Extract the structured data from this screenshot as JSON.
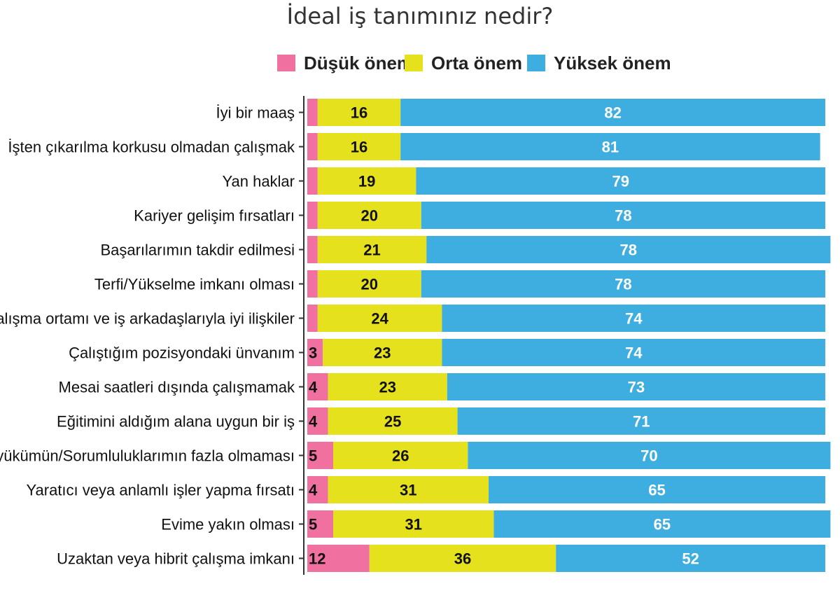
{
  "chart_data": {
    "type": "bar",
    "orientation": "horizontal",
    "stacked": true,
    "title": "İdeal iş tanımınız nedir?",
    "xlabel": "",
    "ylabel": "",
    "xlim": [
      0,
      100
    ],
    "grid": false,
    "legend_position": "top",
    "categories": [
      "İyi bir maaş",
      "İşten çıkarılma korkusu olmadan çalışmak",
      "Yan haklar",
      "Kariyer gelişim fırsatları",
      "Başarılarımın takdir edilmesi",
      "Terfi/Yükselme imkanı olması",
      "Çalışma ortamı ve iş arkadaşlarıyla iyi ilişkiler",
      "Çalıştığım pozisyondaki ünvanım",
      "Mesai saatleri dışında çalışmamak",
      "Eğitimini aldığım alana uygun bir iş",
      "İş yükümün/Sorumluluklarımın fazla olmaması",
      "Yaratıcı veya anlamlı işler yapma fırsatı",
      "Evime yakın olması",
      "Uzaktan veya hibrit çalışma imkanı"
    ],
    "series": [
      {
        "name": "Düşük önem",
        "color": "#f0719f",
        "values": [
          2,
          2,
          2,
          2,
          2,
          2,
          2,
          3,
          4,
          4,
          5,
          4,
          5,
          12
        ]
      },
      {
        "name": "Orta önem",
        "color": "#e5e11c",
        "values": [
          16,
          16,
          19,
          20,
          21,
          20,
          24,
          23,
          23,
          25,
          26,
          31,
          31,
          36
        ]
      },
      {
        "name": "Yüksek önem",
        "color": "#3eaee0",
        "values": [
          82,
          81,
          79,
          78,
          78,
          78,
          74,
          74,
          73,
          71,
          70,
          65,
          65,
          52
        ]
      }
    ]
  }
}
